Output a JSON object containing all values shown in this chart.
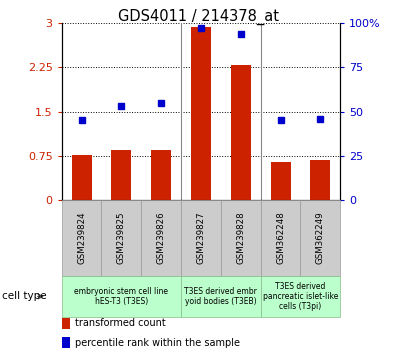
{
  "title": "GDS4011 / 214378_at",
  "samples": [
    "GSM239824",
    "GSM239825",
    "GSM239826",
    "GSM239827",
    "GSM239828",
    "GSM362248",
    "GSM362249"
  ],
  "transformed_count": [
    0.77,
    0.85,
    0.85,
    2.93,
    2.28,
    0.65,
    0.67
  ],
  "percentile_rank": [
    45,
    53,
    55,
    97,
    94,
    45,
    46
  ],
  "bar_color": "#cc2200",
  "dot_color": "#0000cc",
  "ylim_left": [
    0,
    3
  ],
  "ylim_right": [
    0,
    100
  ],
  "yticks_left": [
    0,
    0.75,
    1.5,
    2.25,
    3
  ],
  "ytick_labels_left": [
    "0",
    "0.75",
    "1.5",
    "2.25",
    "3"
  ],
  "yticks_right": [
    0,
    25,
    50,
    75,
    100
  ],
  "ytick_labels_right": [
    "0",
    "25",
    "50",
    "75",
    "100%"
  ],
  "groups": [
    {
      "label": "embryonic stem cell line\nhES-T3 (T3ES)",
      "span": [
        0,
        3
      ]
    },
    {
      "label": "T3ES derived embr\nyoid bodies (T3EB)",
      "span": [
        3,
        5
      ]
    },
    {
      "label": "T3ES derived\npancreatic islet-like\ncells (T3pi)",
      "span": [
        5,
        7
      ]
    }
  ],
  "cell_type_label": "cell type",
  "legend_entries": [
    {
      "label": "transformed count",
      "color": "#cc2200"
    },
    {
      "label": "percentile rank within the sample",
      "color": "#0000cc"
    }
  ],
  "gray_box_color": "#cccccc",
  "green_box_color": "#bbffcc",
  "fig_width": 3.98,
  "fig_height": 3.54,
  "dpi": 100
}
